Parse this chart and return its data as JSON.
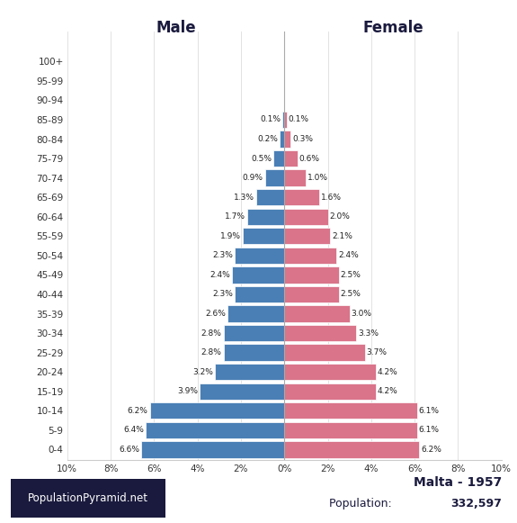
{
  "age_groups": [
    "0-4",
    "5-9",
    "10-14",
    "15-19",
    "20-24",
    "25-29",
    "30-34",
    "35-39",
    "40-44",
    "45-49",
    "50-54",
    "55-59",
    "60-64",
    "65-69",
    "70-74",
    "75-79",
    "80-84",
    "85-89",
    "90-94",
    "95-99",
    "100+"
  ],
  "male_pct": [
    6.6,
    6.4,
    6.2,
    3.9,
    3.2,
    2.8,
    2.8,
    2.6,
    2.3,
    2.4,
    2.3,
    1.9,
    1.7,
    1.3,
    0.9,
    0.5,
    0.2,
    0.1,
    0.0,
    0.0,
    0.0
  ],
  "female_pct": [
    6.2,
    6.1,
    6.1,
    4.2,
    4.2,
    3.7,
    3.3,
    3.0,
    2.5,
    2.5,
    2.4,
    2.1,
    2.0,
    1.6,
    1.0,
    0.6,
    0.3,
    0.1,
    0.0,
    0.0,
    0.0
  ],
  "male_color": "#4a7fb5",
  "female_color": "#d9748a",
  "bar_edge_color": "white",
  "xlim": 10,
  "xlabel_left": "Male",
  "xlabel_right": "Female",
  "title": "Malta - 1957",
  "population_label": "Population: ",
  "population_value": "332,597",
  "watermark": "PopulationPyramid.net",
  "background_color": "#ffffff",
  "bar_height": 0.85,
  "dark_color": "#1a1a3e"
}
